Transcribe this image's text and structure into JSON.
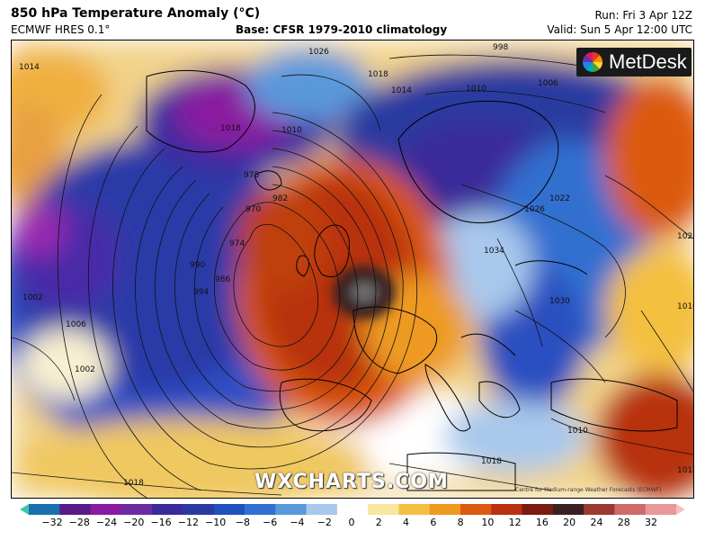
{
  "header": {
    "title": "850 hPa Temperature Anomaly (°C)",
    "model": "ECMWF HRES 0.1°",
    "base": "Base: CFSR 1979-2010 climatology",
    "run": "Run: Fri 3 Apr 12Z",
    "valid": "Valid: Sun 5 Apr 12:00 UTC"
  },
  "logo": {
    "text": "MetDesk",
    "icon": "metdesk-pinwheel-icon"
  },
  "watermark": "WXCHARTS.COM",
  "credit": "Centre for Medium-range Weather Forecasts (ECMWF)",
  "colorbar": {
    "ticks": [
      "−32",
      "−28",
      "−24",
      "−20",
      "−16",
      "−12",
      "−10",
      "−8",
      "−6",
      "−4",
      "−2",
      "0",
      "2",
      "4",
      "6",
      "8",
      "10",
      "12",
      "16",
      "20",
      "24",
      "28",
      "32"
    ],
    "colors": [
      "#3cc8a8",
      "#1a6fb0",
      "#5a1a8a",
      "#8a1aa0",
      "#6a2aa0",
      "#3a2a9a",
      "#2a3aa0",
      "#2050c0",
      "#3070d0",
      "#5a98dc",
      "#a8c8ec",
      "#ffffff",
      "#f8e6a0",
      "#f4c040",
      "#ee9a20",
      "#dc5a10",
      "#b83010",
      "#7a1a10",
      "#3a2020",
      "#9a3a30",
      "#d06a6a",
      "#e89898",
      "#f4c0c0"
    ]
  },
  "isobars": [
    "1014",
    "1026",
    "1018",
    "1010",
    "1006",
    "998",
    "1014",
    "1018",
    "1010",
    "1022",
    "1026",
    "1034",
    "1030",
    "1022",
    "1002",
    "1006",
    "990",
    "994",
    "986",
    "982",
    "978",
    "974",
    "970",
    "1018",
    "1018",
    "1010",
    "1018",
    "1010",
    "1002"
  ]
}
